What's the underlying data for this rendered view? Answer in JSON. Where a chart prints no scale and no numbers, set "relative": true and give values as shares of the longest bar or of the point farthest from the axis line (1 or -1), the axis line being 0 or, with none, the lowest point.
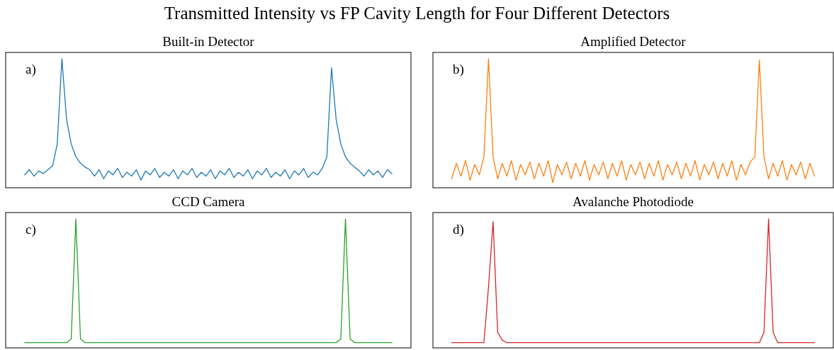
{
  "chart_data": [
    {
      "type": "other",
      "title": "Transmitted Intensity vs FP Cavity Length for Four Different Detectors"
    },
    {
      "type": "line",
      "title": "Built-in Detector",
      "relative": true,
      "annotations": [
        "a)"
      ],
      "categories": [
        null,
        null,
        null,
        null,
        null,
        null,
        null,
        null,
        null,
        null,
        null,
        null,
        null,
        null,
        null,
        null,
        null,
        null,
        null,
        null,
        null,
        null,
        null,
        null,
        null,
        null,
        null,
        null,
        null,
        null,
        null,
        null,
        null,
        null,
        null,
        null,
        null,
        null,
        null,
        null,
        null,
        null,
        null,
        null,
        null,
        null,
        null,
        null,
        null,
        null,
        null,
        null,
        null,
        null,
        null,
        null,
        null,
        null,
        null,
        null,
        null,
        null,
        null,
        null,
        null,
        null,
        null,
        null,
        null,
        null,
        null,
        null,
        null,
        null,
        null,
        null,
        null,
        null,
        null,
        null
      ],
      "series": [
        {
          "color": "#1f77b4",
          "values": [
            0.1,
            0.14,
            0.09,
            0.13,
            0.11,
            0.14,
            0.17,
            0.34,
            1,
            0.53,
            0.34,
            0.24,
            0.19,
            0.16,
            0.14,
            0.09,
            0.14,
            0.07,
            0.13,
            0.1,
            0.15,
            0.08,
            0.12,
            0.09,
            0.14,
            0.06,
            0.13,
            0.1,
            0.15,
            0.08,
            0.12,
            0.09,
            0.14,
            0.07,
            0.13,
            0.1,
            0.15,
            0.08,
            0.12,
            0.09,
            0.14,
            0.07,
            0.13,
            0.1,
            0.15,
            0.08,
            0.12,
            0.09,
            0.14,
            0.07,
            0.13,
            0.1,
            0.15,
            0.08,
            0.12,
            0.09,
            0.14,
            0.07,
            0.13,
            0.1,
            0.15,
            0.08,
            0.12,
            0.1,
            0.15,
            0.24,
            0.93,
            0.53,
            0.34,
            0.24,
            0.19,
            0.16,
            0.13,
            0.09,
            0.14,
            0.1,
            0.13,
            0.08,
            0.14,
            0.11
          ]
        }
      ]
    },
    {
      "type": "line",
      "title": "Amplified Detector",
      "relative": true,
      "annotations": [
        "b)"
      ],
      "categories": [
        null,
        null,
        null,
        null,
        null,
        null,
        null,
        null,
        null,
        null,
        null,
        null,
        null,
        null,
        null,
        null,
        null,
        null,
        null,
        null,
        null,
        null,
        null,
        null,
        null,
        null,
        null,
        null,
        null,
        null,
        null,
        null,
        null,
        null,
        null,
        null,
        null,
        null,
        null,
        null,
        null,
        null,
        null,
        null,
        null,
        null,
        null,
        null,
        null,
        null,
        null,
        null,
        null,
        null,
        null,
        null,
        null,
        null,
        null,
        null,
        null,
        null,
        null,
        null,
        null,
        null,
        null,
        null,
        null,
        null,
        null,
        null,
        null,
        null,
        null,
        null,
        null,
        null,
        null,
        null
      ],
      "series": [
        {
          "color": "#ff7f0e",
          "values": [
            0.07,
            0.19,
            0.09,
            0.21,
            0.06,
            0.18,
            0.1,
            0.24,
            1,
            0.24,
            0.07,
            0.19,
            0.09,
            0.21,
            0.06,
            0.18,
            0.1,
            0.2,
            0.07,
            0.19,
            0.09,
            0.21,
            0.04,
            0.18,
            0.1,
            0.2,
            0.07,
            0.19,
            0.09,
            0.21,
            0.06,
            0.18,
            0.1,
            0.2,
            0.07,
            0.19,
            0.09,
            0.21,
            0.06,
            0.18,
            0.1,
            0.2,
            0.07,
            0.19,
            0.09,
            0.21,
            0.06,
            0.18,
            0.1,
            0.2,
            0.07,
            0.19,
            0.09,
            0.21,
            0.06,
            0.18,
            0.1,
            0.2,
            0.07,
            0.19,
            0.09,
            0.21,
            0.06,
            0.18,
            0.1,
            0.2,
            0.24,
            0.99,
            0.24,
            0.07,
            0.19,
            0.09,
            0.21,
            0.06,
            0.18,
            0.1,
            0.2,
            0.07,
            0.19,
            0.09
          ]
        }
      ]
    },
    {
      "type": "line",
      "title": "CCD Camera",
      "relative": true,
      "annotations": [
        "c)"
      ],
      "categories": [
        null,
        null,
        null,
        null,
        null,
        null,
        null,
        null,
        null,
        null,
        null,
        null,
        null,
        null,
        null,
        null,
        null,
        null,
        null,
        null,
        null,
        null,
        null,
        null,
        null,
        null,
        null,
        null,
        null,
        null,
        null,
        null,
        null,
        null,
        null,
        null,
        null,
        null,
        null,
        null,
        null,
        null,
        null,
        null,
        null,
        null,
        null,
        null,
        null,
        null,
        null,
        null,
        null,
        null,
        null,
        null,
        null,
        null,
        null,
        null,
        null,
        null,
        null,
        null,
        null,
        null,
        null,
        null,
        null,
        null,
        null,
        null,
        null,
        null,
        null,
        null,
        null,
        null,
        null,
        null
      ],
      "series": [
        {
          "color": "#2ca02c",
          "values": [
            0.04,
            0.04,
            0.04,
            0.04,
            0.04,
            0.04,
            0.04,
            0.04,
            0.04,
            0.04,
            0.07,
            1,
            0.07,
            0.04,
            0.04,
            0.04,
            0.04,
            0.04,
            0.04,
            0.04,
            0.04,
            0.04,
            0.04,
            0.04,
            0.04,
            0.04,
            0.04,
            0.04,
            0.04,
            0.04,
            0.04,
            0.04,
            0.04,
            0.04,
            0.04,
            0.04,
            0.04,
            0.04,
            0.04,
            0.04,
            0.04,
            0.04,
            0.04,
            0.04,
            0.04,
            0.04,
            0.04,
            0.04,
            0.04,
            0.04,
            0.04,
            0.04,
            0.04,
            0.04,
            0.04,
            0.04,
            0.04,
            0.04,
            0.04,
            0.04,
            0.04,
            0.04,
            0.04,
            0.04,
            0.04,
            0.04,
            0.04,
            0.04,
            0.07,
            1,
            0.07,
            0.04,
            0.04,
            0.04,
            0.04,
            0.04,
            0.04,
            0.04,
            0.04,
            0.04
          ]
        }
      ]
    },
    {
      "type": "line",
      "title": "Avalanche Photodiode",
      "relative": true,
      "annotations": [
        "d)"
      ],
      "categories": [
        null,
        null,
        null,
        null,
        null,
        null,
        null,
        null,
        null,
        null,
        null,
        null,
        null,
        null,
        null,
        null,
        null,
        null,
        null,
        null,
        null,
        null,
        null,
        null,
        null,
        null,
        null,
        null,
        null,
        null,
        null,
        null,
        null,
        null,
        null,
        null,
        null,
        null,
        null,
        null,
        null,
        null,
        null,
        null,
        null,
        null,
        null,
        null,
        null,
        null,
        null,
        null,
        null,
        null,
        null,
        null,
        null,
        null,
        null,
        null,
        null,
        null,
        null,
        null,
        null,
        null,
        null,
        null,
        null,
        null,
        null,
        null,
        null,
        null,
        null,
        null,
        null,
        null,
        null,
        null
      ],
      "series": [
        {
          "color": "#d62728",
          "values": [
            0.04,
            0.04,
            0.04,
            0.04,
            0.04,
            0.04,
            0.04,
            0.04,
            0.47,
            0.98,
            0.12,
            0.06,
            0.04,
            0.04,
            0.04,
            0.04,
            0.04,
            0.04,
            0.04,
            0.04,
            0.04,
            0.04,
            0.04,
            0.04,
            0.04,
            0.04,
            0.04,
            0.04,
            0.04,
            0.04,
            0.04,
            0.04,
            0.04,
            0.04,
            0.04,
            0.04,
            0.04,
            0.04,
            0.04,
            0.04,
            0.04,
            0.04,
            0.04,
            0.04,
            0.04,
            0.04,
            0.04,
            0.04,
            0.04,
            0.04,
            0.04,
            0.04,
            0.04,
            0.04,
            0.04,
            0.04,
            0.04,
            0.04,
            0.04,
            0.04,
            0.04,
            0.04,
            0.04,
            0.04,
            0.04,
            0.04,
            0.04,
            0.04,
            0.12,
            1,
            0.12,
            0.04,
            0.04,
            0.04,
            0.04,
            0.04,
            0.04,
            0.04,
            0.04,
            0.04
          ]
        }
      ]
    }
  ]
}
